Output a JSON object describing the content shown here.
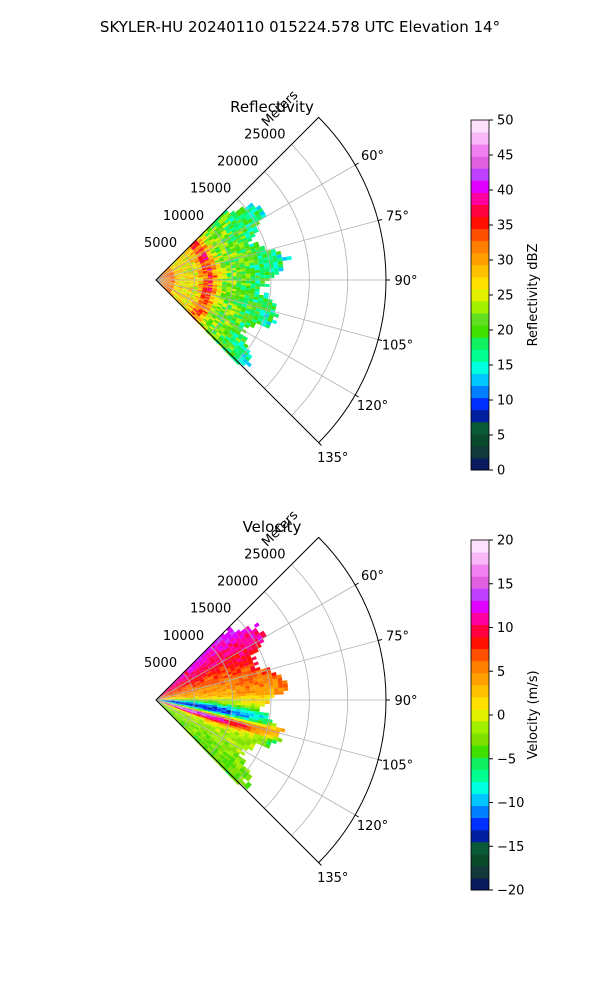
{
  "suptitle": "SKYLER-HU  20240110  015224.578 UTC Elevation 14°",
  "chart_data": [
    {
      "type": "heatmap",
      "projection": "polar-sector",
      "title": "Reflectivity",
      "range_label": "Meters",
      "range_ticks": [
        "5000",
        "10000",
        "15000",
        "20000",
        "25000"
      ],
      "range_max": 30000,
      "azimuth_ticks": [
        "60°",
        "75°",
        "90°",
        "105°",
        "120°",
        "135°"
      ],
      "azimuth_range": [
        45,
        135
      ],
      "grid": true,
      "colorbar": {
        "label": "Reflectivity dBZ",
        "min": 0,
        "max": 50,
        "ticks": [
          "0",
          "5",
          "10",
          "15",
          "20",
          "25",
          "30",
          "35",
          "40",
          "45",
          "50"
        ],
        "colors": [
          "#0a1a5c",
          "#123a3a",
          "#0a4a2a",
          "#0a5a3a",
          "#0020a0",
          "#0030ff",
          "#0080ff",
          "#00c8ff",
          "#00ffe0",
          "#00ff90",
          "#10f060",
          "#40e000",
          "#60e020",
          "#a0f000",
          "#e0f000",
          "#ffe000",
          "#ffc000",
          "#ffa000",
          "#ff8000",
          "#ff5000",
          "#ff1000",
          "#ff0040",
          "#ff00a0",
          "#e000ff",
          "#c040ff",
          "#e060e0",
          "#f080f0",
          "#f8b8f8",
          "#fce0fc"
        ]
      },
      "echo_extent": {
        "azimuth": [
          45,
          136
        ],
        "max_range_m": 21000
      }
    },
    {
      "type": "heatmap",
      "projection": "polar-sector",
      "title": "Velocity",
      "range_label": "Meters",
      "range_ticks": [
        "5000",
        "10000",
        "15000",
        "20000",
        "25000"
      ],
      "range_max": 30000,
      "azimuth_ticks": [
        "60°",
        "75°",
        "90°",
        "105°",
        "120°",
        "135°"
      ],
      "azimuth_range": [
        45,
        135
      ],
      "grid": true,
      "colorbar": {
        "label": "Velocity (m/s)",
        "min": -20,
        "max": 20,
        "ticks": [
          "−20",
          "−15",
          "−10",
          "−5",
          "0",
          "5",
          "10",
          "15",
          "20"
        ],
        "colors": [
          "#0a1a5c",
          "#123a3a",
          "#0a4a2a",
          "#0a5a3a",
          "#0020a0",
          "#0030ff",
          "#0080ff",
          "#00c8ff",
          "#00ffe0",
          "#00ff90",
          "#10f060",
          "#40e000",
          "#80e000",
          "#a0f000",
          "#e0f000",
          "#ffe000",
          "#ffc000",
          "#ffa000",
          "#ff8000",
          "#ff5000",
          "#ff1000",
          "#ff0040",
          "#ff00a0",
          "#e000ff",
          "#c040ff",
          "#e060e0",
          "#f080f0",
          "#f8b8f8",
          "#fce0fc"
        ]
      },
      "echo_extent": {
        "azimuth": [
          45,
          136
        ],
        "max_range_m": 21000
      }
    }
  ]
}
